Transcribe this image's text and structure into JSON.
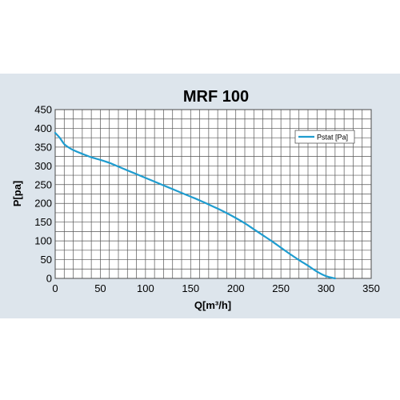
{
  "chart_data": {
    "type": "line",
    "title": "MRF 100",
    "xlabel": "Q[m³/h]",
    "ylabel": "P[pa]",
    "xlim": [
      0,
      350
    ],
    "ylim": [
      0,
      450
    ],
    "x_ticks": [
      0,
      50,
      100,
      150,
      200,
      250,
      300,
      350
    ],
    "y_ticks": [
      0,
      50,
      100,
      150,
      200,
      250,
      300,
      350,
      400,
      450
    ],
    "grid": true,
    "legend_position": "top-right",
    "series": [
      {
        "name": "Pstat [Pa]",
        "color": "#1e9ccf",
        "x": [
          0,
          5,
          10,
          15,
          20,
          30,
          40,
          50,
          60,
          70,
          80,
          90,
          100,
          110,
          120,
          130,
          140,
          150,
          160,
          170,
          180,
          190,
          200,
          210,
          220,
          230,
          240,
          250,
          260,
          270,
          280,
          290,
          300,
          310
        ],
        "y": [
          388,
          375,
          358,
          349,
          342,
          332,
          323,
          316,
          308,
          298,
          288,
          278,
          268,
          258,
          248,
          238,
          228,
          218,
          208,
          197,
          186,
          174,
          161,
          147,
          131,
          115,
          99,
          82,
          65,
          49,
          34,
          18,
          6,
          0
        ]
      }
    ]
  }
}
